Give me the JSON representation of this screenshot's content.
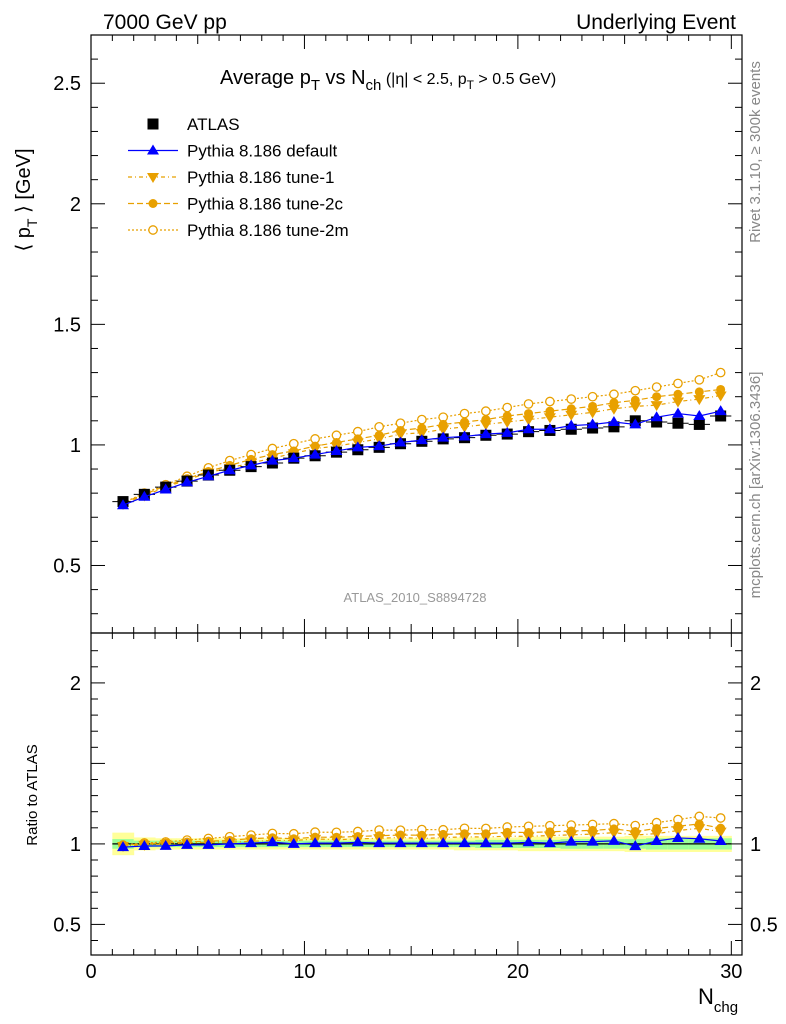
{
  "header": {
    "left": "7000 GeV pp",
    "right": "Underlying Event"
  },
  "side_text": {
    "rivet": "Rivet 3.1.10, ≥ 300k events",
    "mcplots": "mcplots.cern.ch [arXiv:1306.3436]"
  },
  "watermark": "ATLAS_2010_S8894728",
  "colors": {
    "atlas": "#000000",
    "default": "#0000ff",
    "tunes": "#e8a000",
    "band_inner": "#99ff99",
    "band_outer": "#ffff99"
  },
  "chart_data": [
    {
      "type": "scatter",
      "title": "Average p_T vs N_ch (|η| < 2.5, p_T > 0.5 GeV)",
      "title_parts": {
        "a": "Average p",
        "a_sub": "T",
        "b": " vs N",
        "b_sub": "ch",
        "c": " (|η| < 2.5, p",
        "c_sub": "T",
        "d": " > 0.5 GeV)"
      },
      "ylabel_parts": {
        "a": "⟨ p",
        "sub": "T",
        "b": " ⟩ [GeV]"
      },
      "xlabel": "",
      "xlim": [
        0,
        30.5
      ],
      "ylim": [
        0.22,
        2.7
      ],
      "yticks": [
        {
          "v": 0.5,
          "label": "0.5"
        },
        {
          "v": 1,
          "label": "1"
        },
        {
          "v": 1.5,
          "label": "1.5"
        },
        {
          "v": 2,
          "label": "2"
        },
        {
          "v": 2.5,
          "label": "2.5"
        }
      ],
      "legend_position": "top-left",
      "x": [
        1.5,
        2.5,
        3.5,
        4.5,
        5.5,
        6.5,
        7.5,
        8.5,
        9.5,
        10.5,
        11.5,
        12.5,
        13.5,
        14.5,
        15.5,
        16.5,
        17.5,
        18.5,
        19.5,
        20.5,
        21.5,
        22.5,
        23.5,
        24.5,
        25.5,
        26.5,
        27.5,
        28.5,
        29.5
      ],
      "series": [
        {
          "name": "ATLAS",
          "marker": "square",
          "values": [
            0.765,
            0.795,
            0.825,
            0.85,
            0.875,
            0.895,
            0.91,
            0.925,
            0.945,
            0.955,
            0.97,
            0.98,
            0.99,
            1.005,
            1.015,
            1.025,
            1.03,
            1.04,
            1.045,
            1.055,
            1.06,
            1.065,
            1.07,
            1.075,
            1.1,
            1.095,
            1.09,
            1.085,
            1.12
          ]
        },
        {
          "name": "Pythia 8.186 default",
          "marker": "triangle-up",
          "values": [
            0.75,
            0.785,
            0.815,
            0.845,
            0.87,
            0.895,
            0.915,
            0.935,
            0.945,
            0.96,
            0.975,
            0.99,
            0.995,
            1.01,
            1.02,
            1.03,
            1.035,
            1.045,
            1.05,
            1.065,
            1.065,
            1.08,
            1.085,
            1.095,
            1.085,
            1.115,
            1.13,
            1.12,
            1.14
          ]
        },
        {
          "name": "Pythia 8.186 tune-1",
          "marker": "triangle-down",
          "values": [
            0.755,
            0.79,
            0.825,
            0.855,
            0.885,
            0.905,
            0.925,
            0.945,
            0.965,
            0.985,
            0.995,
            1.01,
            1.025,
            1.045,
            1.05,
            1.065,
            1.075,
            1.085,
            1.095,
            1.105,
            1.115,
            1.125,
            1.135,
            1.15,
            1.16,
            1.165,
            1.18,
            1.19,
            1.205
          ]
        },
        {
          "name": "Pythia 8.186 tune-2c",
          "marker": "circle",
          "values": [
            0.76,
            0.795,
            0.83,
            0.86,
            0.89,
            0.915,
            0.94,
            0.96,
            0.975,
            0.995,
            1.01,
            1.025,
            1.04,
            1.06,
            1.07,
            1.085,
            1.095,
            1.105,
            1.12,
            1.13,
            1.14,
            1.15,
            1.16,
            1.175,
            1.185,
            1.2,
            1.21,
            1.22,
            1.23
          ]
        },
        {
          "name": "Pythia 8.186 tune-2m",
          "marker": "open-circle",
          "values": [
            0.76,
            0.8,
            0.835,
            0.87,
            0.905,
            0.935,
            0.96,
            0.985,
            1.005,
            1.025,
            1.04,
            1.055,
            1.075,
            1.09,
            1.105,
            1.115,
            1.13,
            1.14,
            1.155,
            1.17,
            1.18,
            1.19,
            1.2,
            1.21,
            1.225,
            1.24,
            1.255,
            1.27,
            1.3
          ]
        }
      ]
    },
    {
      "type": "scatter",
      "title": "",
      "ylabel": "Ratio to ATLAS",
      "xlabel": "N_chg",
      "xlabel_parts": {
        "a": "N",
        "sub": "chg"
      },
      "xlim": [
        0,
        30.5
      ],
      "ylim": [
        0.31,
        2.31
      ],
      "xticks": [
        {
          "v": 0,
          "label": "0"
        },
        {
          "v": 10,
          "label": "10"
        },
        {
          "v": 20,
          "label": "20"
        },
        {
          "v": 30,
          "label": "30"
        }
      ],
      "yticks": [
        {
          "v": 0.5,
          "label": "0.5"
        },
        {
          "v": 1,
          "label": "1"
        },
        {
          "v": 2,
          "label": "2"
        }
      ],
      "x": [
        1.5,
        2.5,
        3.5,
        4.5,
        5.5,
        6.5,
        7.5,
        8.5,
        9.5,
        10.5,
        11.5,
        12.5,
        13.5,
        14.5,
        15.5,
        16.5,
        17.5,
        18.5,
        19.5,
        20.5,
        21.5,
        22.5,
        23.5,
        24.5,
        25.5,
        26.5,
        27.5,
        28.5,
        29.5
      ],
      "band_inner": [
        0.03,
        0.02,
        0.02,
        0.02,
        0.02,
        0.02,
        0.02,
        0.02,
        0.02,
        0.02,
        0.02,
        0.02,
        0.02,
        0.02,
        0.02,
        0.02,
        0.02,
        0.025,
        0.025,
        0.025,
        0.025,
        0.03,
        0.03,
        0.03,
        0.03,
        0.035,
        0.035,
        0.035,
        0.035
      ],
      "band_outer": [
        0.07,
        0.04,
        0.035,
        0.035,
        0.035,
        0.035,
        0.035,
        0.035,
        0.035,
        0.035,
        0.035,
        0.035,
        0.035,
        0.035,
        0.035,
        0.035,
        0.04,
        0.04,
        0.04,
        0.045,
        0.045,
        0.045,
        0.045,
        0.045,
        0.05,
        0.05,
        0.05,
        0.05,
        0.05
      ],
      "series": [
        {
          "name": "Pythia 8.186 default",
          "marker": "triangle-up",
          "values": [
            0.98,
            0.987,
            0.988,
            0.994,
            0.994,
            1.0,
            1.005,
            1.011,
            1.0,
            1.005,
            1.005,
            1.01,
            1.005,
            1.005,
            1.005,
            1.005,
            1.005,
            1.005,
            1.005,
            1.01,
            1.005,
            1.014,
            1.014,
            1.019,
            0.986,
            1.018,
            1.037,
            1.032,
            1.018
          ]
        },
        {
          "name": "Pythia 8.186 tune-1",
          "marker": "triangle-down",
          "values": [
            0.987,
            0.994,
            1.0,
            1.006,
            1.011,
            1.011,
            1.016,
            1.022,
            1.021,
            1.031,
            1.026,
            1.031,
            1.035,
            1.04,
            1.034,
            1.039,
            1.044,
            1.043,
            1.048,
            1.047,
            1.052,
            1.056,
            1.061,
            1.07,
            1.055,
            1.064,
            1.083,
            1.097,
            1.076
          ]
        },
        {
          "name": "Pythia 8.186 tune-2c",
          "marker": "circle",
          "values": [
            0.993,
            1.0,
            1.006,
            1.012,
            1.017,
            1.022,
            1.033,
            1.038,
            1.032,
            1.042,
            1.041,
            1.046,
            1.051,
            1.055,
            1.054,
            1.059,
            1.063,
            1.063,
            1.072,
            1.071,
            1.075,
            1.08,
            1.084,
            1.093,
            1.077,
            1.096,
            1.11,
            1.124,
            1.098
          ]
        },
        {
          "name": "Pythia 8.186 tune-2m",
          "marker": "open-circle",
          "values": [
            0.993,
            1.006,
            1.012,
            1.024,
            1.034,
            1.045,
            1.055,
            1.065,
            1.063,
            1.073,
            1.072,
            1.077,
            1.086,
            1.085,
            1.089,
            1.088,
            1.097,
            1.096,
            1.105,
            1.109,
            1.113,
            1.117,
            1.121,
            1.126,
            1.114,
            1.132,
            1.151,
            1.171,
            1.161
          ]
        }
      ]
    }
  ]
}
